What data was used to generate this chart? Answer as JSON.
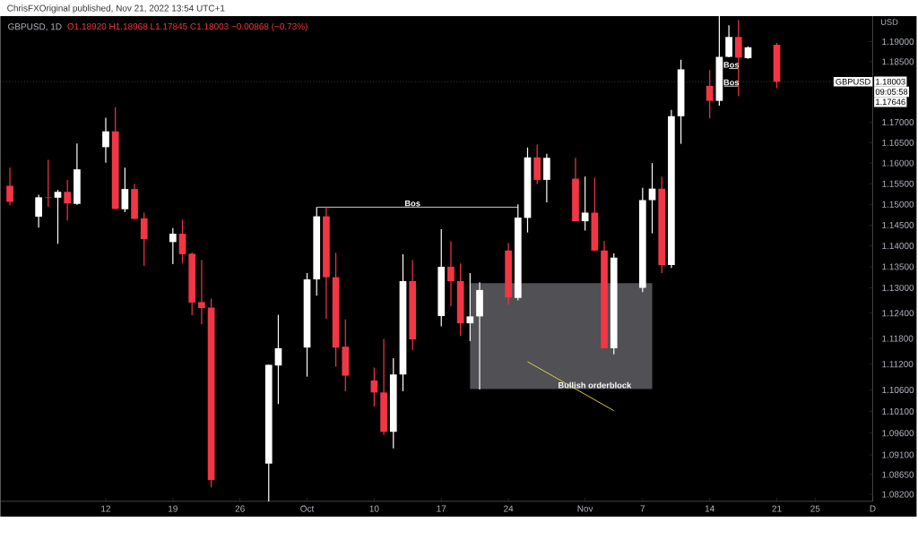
{
  "chart_data": {
    "type": "candlestick",
    "title": "GBPUSD, 1D",
    "subtitle": "O1.18920 H1.18968 L1.17845 C1.18003 −0.00868 (−0.73%)",
    "ylabel": "USD",
    "log": true,
    "x": [
      "2022-09-02",
      "2022-09-05",
      "2022-09-06",
      "2022-09-07",
      "2022-09-08",
      "2022-09-09",
      "2022-09-12",
      "2022-09-13",
      "2022-09-14",
      "2022-09-15",
      "2022-09-16",
      "2022-09-19",
      "2022-09-20",
      "2022-09-21",
      "2022-09-22",
      "2022-09-23",
      "2022-09-29",
      "2022-09-30",
      "2022-10-03",
      "2022-10-04",
      "2022-10-05",
      "2022-10-06",
      "2022-10-07",
      "2022-10-10",
      "2022-10-11",
      "2022-10-12",
      "2022-10-13",
      "2022-10-14",
      "2022-10-17",
      "2022-10-18",
      "2022-10-19",
      "2022-10-20",
      "2022-10-21",
      "2022-10-24",
      "2022-10-25",
      "2022-10-26",
      "2022-10-27",
      "2022-10-28",
      "2022-10-31",
      "2022-11-01",
      "2022-11-02",
      "2022-11-03",
      "2022-11-04",
      "2022-11-07",
      "2022-11-08",
      "2022-11-09",
      "2022-11-10",
      "2022-11-11",
      "2022-11-14",
      "2022-11-15",
      "2022-11-16",
      "2022-11-17",
      "2022-11-18",
      "2022-11-21"
    ],
    "ohlc": [
      [
        1.1545,
        1.1589,
        1.1498,
        1.1506
      ],
      [
        1.147,
        1.1523,
        1.1444,
        1.1517
      ],
      [
        1.1517,
        1.1608,
        1.1494,
        1.1516
      ],
      [
        1.1516,
        1.1535,
        1.1405,
        1.153
      ],
      [
        1.153,
        1.1559,
        1.1461,
        1.1502
      ],
      [
        1.1501,
        1.1648,
        1.1499,
        1.1585
      ],
      [
        1.1639,
        1.1711,
        1.1601,
        1.1678
      ],
      [
        1.1678,
        1.1737,
        1.1488,
        1.1489
      ],
      [
        1.1488,
        1.1589,
        1.1481,
        1.1537
      ],
      [
        1.1537,
        1.155,
        1.1463,
        1.1465
      ],
      [
        1.1466,
        1.148,
        1.1352,
        1.1416
      ],
      [
        1.1409,
        1.1443,
        1.1356,
        1.1429
      ],
      [
        1.1429,
        1.1463,
        1.1358,
        1.138
      ],
      [
        1.1381,
        1.1384,
        1.1235,
        1.1265
      ],
      [
        1.1266,
        1.1366,
        1.1214,
        1.1252
      ],
      [
        1.1253,
        1.1274,
        1.0836,
        1.0852
      ],
      [
        1.089,
        1.1119,
        1.0804,
        1.1118
      ],
      [
        1.1117,
        1.1236,
        1.1027,
        1.1157
      ],
      [
        1.1159,
        1.1335,
        1.1091,
        1.132
      ],
      [
        1.132,
        1.1493,
        1.1281,
        1.1471
      ],
      [
        1.1471,
        1.1493,
        1.1227,
        1.1325
      ],
      [
        1.1325,
        1.1383,
        1.1114,
        1.1159
      ],
      [
        1.1161,
        1.1225,
        1.1057,
        1.1093
      ],
      [
        1.1082,
        1.1112,
        1.1021,
        1.1054
      ],
      [
        1.1054,
        1.1179,
        1.0956,
        1.0963
      ],
      [
        1.0963,
        1.1134,
        1.0925,
        1.1096
      ],
      [
        1.1096,
        1.138,
        1.1057,
        1.1316
      ],
      [
        1.1316,
        1.1366,
        1.1153,
        1.1178
      ],
      [
        1.1233,
        1.144,
        1.1209,
        1.135
      ],
      [
        1.135,
        1.1411,
        1.1256,
        1.1316
      ],
      [
        1.1316,
        1.1358,
        1.1186,
        1.1216
      ],
      [
        1.1216,
        1.1335,
        1.1174,
        1.1232
      ],
      [
        1.1232,
        1.1313,
        1.1061,
        1.1295
      ],
      [
        1.1389,
        1.1407,
        1.126,
        1.1277
      ],
      [
        1.1276,
        1.15,
        1.127,
        1.1468
      ],
      [
        1.1467,
        1.1638,
        1.1432,
        1.1614
      ],
      [
        1.1614,
        1.1645,
        1.1549,
        1.1559
      ],
      [
        1.1559,
        1.1623,
        1.1505,
        1.1613
      ],
      [
        1.1562,
        1.1613,
        1.1459,
        1.1459
      ],
      [
        1.1459,
        1.1567,
        1.1437,
        1.148
      ],
      [
        1.148,
        1.1565,
        1.1389,
        1.1389
      ],
      [
        1.1389,
        1.1412,
        1.1157,
        1.1157
      ],
      [
        1.1157,
        1.1382,
        1.1143,
        1.1372
      ],
      [
        1.13,
        1.154,
        1.129,
        1.151
      ],
      [
        1.151,
        1.16,
        1.143,
        1.1538
      ],
      [
        1.1538,
        1.1567,
        1.1335,
        1.1354
      ],
      [
        1.1354,
        1.1731,
        1.1347,
        1.1715
      ],
      [
        1.1715,
        1.1855,
        1.1647,
        1.1831
      ],
      [
        1.179,
        1.1829,
        1.171,
        1.1753
      ],
      [
        1.1753,
        1.1964,
        1.1741,
        1.1862
      ],
      [
        1.1862,
        1.1941,
        1.1861,
        1.1912
      ],
      [
        1.1912,
        1.1955,
        1.1764,
        1.186
      ],
      [
        1.1859,
        1.1888,
        1.1857,
        1.1886
      ],
      [
        1.1892,
        1.18968,
        1.17845,
        1.18003
      ]
    ],
    "colors": [
      "#f23645",
      "#ffffff",
      "#f23645",
      "#ffffff",
      "#f23645",
      "#ffffff",
      "#ffffff",
      "#f23645",
      "#ffffff",
      "#f23645",
      "#f23645",
      "#ffffff",
      "#f23645",
      "#f23645",
      "#f23645",
      "#f23645",
      "#ffffff",
      "#ffffff",
      "#ffffff",
      "#ffffff",
      "#f23645",
      "#f23645",
      "#f23645",
      "#f23645",
      "#f23645",
      "#ffffff",
      "#ffffff",
      "#f23645",
      "#ffffff",
      "#f23645",
      "#f23645",
      "#ffffff",
      "#ffffff",
      "#f23645",
      "#ffffff",
      "#ffffff",
      "#f23645",
      "#ffffff",
      "#f23645",
      "#ffffff",
      "#f23645",
      "#f23645",
      "#ffffff",
      "#ffffff",
      "#ffffff",
      "#f23645",
      "#ffffff",
      "#ffffff",
      "#f23645",
      "#ffffff",
      "#ffffff",
      "#f23645",
      "#ffffff",
      "#f23645"
    ],
    "series": [
      {
        "type": "line",
        "color": "#505055",
        "x": [
          "2022-10-20",
          "2022-11-08"
        ],
        "values": [
          null,
          null
        ],
        "lower": [
          1.1062,
          1.1062
        ],
        "upper": [
          1.1311,
          1.1311
        ]
      },
      {
        "type": "line",
        "color": "#d8d8d8",
        "x": [
          "2022-10-04",
          "2022-10-25"
        ],
        "values": [
          1.1493,
          1.1493
        ]
      },
      {
        "type": "line",
        "color": "#d8d8d8",
        "x": [
          "2022-11-15T12:00",
          "2022-11-17"
        ],
        "values": [
          1.1789,
          1.1789
        ]
      },
      {
        "type": "line",
        "color": "#d8d8d8",
        "x": [
          "2022-11-16",
          "2022-11-17"
        ],
        "values": [
          1.1833,
          1.1833
        ]
      },
      {
        "type": "line",
        "color": "#e6d84a",
        "x": [
          "2022-11-04",
          "2022-10-26"
        ],
        "values": [
          1.1012,
          1.1126
        ]
      }
    ],
    "xlim": [
      "2022-09-01",
      "2022-12-01"
    ],
    "ylim": [
      1.0804,
      1.1964
    ],
    "xticks": [
      {
        "value": "2022-09-12",
        "label": "12"
      },
      {
        "value": "2022-09-19",
        "label": "19"
      },
      {
        "value": "2022-09-26",
        "label": "26"
      },
      {
        "value": "2022-10-03",
        "label": "Oct"
      },
      {
        "value": "2022-10-10",
        "label": "10"
      },
      {
        "value": "2022-10-17",
        "label": "17"
      },
      {
        "value": "2022-10-24",
        "label": "24"
      },
      {
        "value": "2022-11-01",
        "label": "Nov"
      },
      {
        "value": "2022-11-07",
        "label": "7"
      },
      {
        "value": "2022-11-14",
        "label": "14"
      },
      {
        "value": "2022-11-21",
        "label": "21"
      },
      {
        "value": "2022-11-25",
        "label": "25"
      },
      {
        "value": "2022-12-01",
        "label": "D"
      }
    ],
    "yticks": [
      {
        "value": 1.19,
        "label": "1.19000"
      },
      {
        "value": 1.185,
        "label": "1.18500"
      },
      {
        "value": 1.17,
        "label": "1.17000"
      },
      {
        "value": 1.165,
        "label": "1.16500"
      },
      {
        "value": 1.16,
        "label": "1.16000"
      },
      {
        "value": 1.155,
        "label": "1.15500"
      },
      {
        "value": 1.15,
        "label": "1.15000"
      },
      {
        "value": 1.145,
        "label": "1.14500"
      },
      {
        "value": 1.14,
        "label": "1.14000"
      },
      {
        "value": 1.135,
        "label": "1.13500"
      },
      {
        "value": 1.13,
        "label": "1.13000"
      },
      {
        "value": 1.124,
        "label": "1.12400"
      },
      {
        "value": 1.118,
        "label": "1.11800"
      },
      {
        "value": 1.112,
        "label": "1.11200"
      },
      {
        "value": 1.106,
        "label": "1.10600"
      },
      {
        "value": 1.101,
        "label": "1.10100"
      },
      {
        "value": 1.096,
        "label": "1.09600"
      },
      {
        "value": 1.091,
        "label": "1.09100"
      },
      {
        "value": 1.0865,
        "label": "1.08650"
      },
      {
        "value": 1.082,
        "label": "1.08200"
      }
    ],
    "ref_lines": [
      {
        "axis": "y",
        "value": 1.18003,
        "label": "GBPUSD",
        "color": "#808080",
        "line_style": "dotted"
      }
    ],
    "annotations": [
      "ChrisFXOriginal published, Nov 21, 2022 13:54 UTC+1",
      {
        "text": "Bos",
        "x": "2022-10-14",
        "y": 1.1493
      },
      {
        "text": "Bos",
        "x": "2022-11-16T06:00",
        "y": 1.1789
      },
      {
        "text": "Bos",
        "x": "2022-11-16T06:00",
        "y": 1.1833
      },
      {
        "text": "Bullish orderblock",
        "x": "2022-11-02",
        "y": 1.1062
      },
      "1.18003",
      "09:05:58",
      "1.17646"
    ]
  }
}
